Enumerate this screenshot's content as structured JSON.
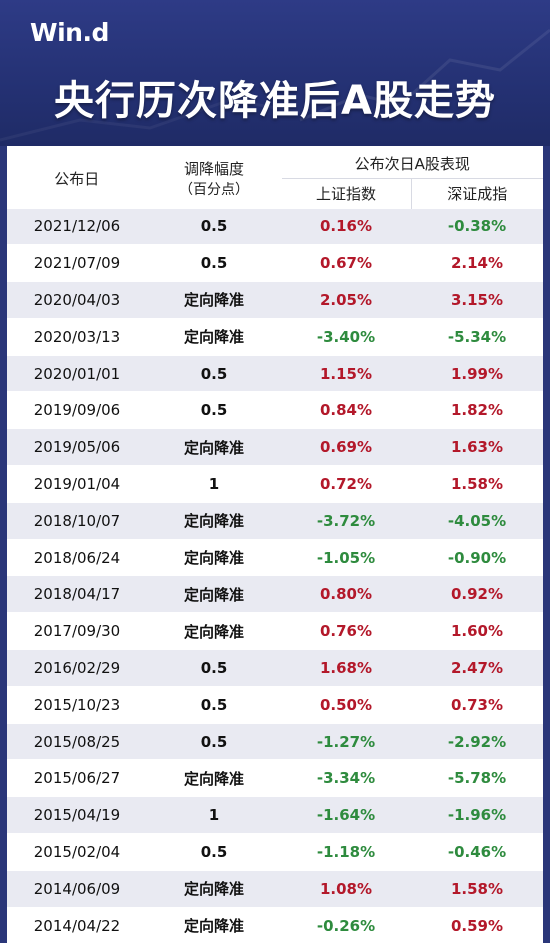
{
  "header": {
    "logo": "Win.d",
    "title": "央行历次降准后A股走势"
  },
  "table": {
    "col_date": "公布日",
    "col_cut_line1": "调降幅度",
    "col_cut_line2": "（百分点）",
    "col_group": "公布次日A股表现",
    "col_sh": "上证指数",
    "col_sz": "深证成指",
    "rows": [
      {
        "date": "2021/12/06",
        "cut": "0.5",
        "sh": "0.16%",
        "sz": "-0.38%"
      },
      {
        "date": "2021/07/09",
        "cut": "0.5",
        "sh": "0.67%",
        "sz": "2.14%"
      },
      {
        "date": "2020/04/03",
        "cut": "定向降准",
        "sh": "2.05%",
        "sz": "3.15%"
      },
      {
        "date": "2020/03/13",
        "cut": "定向降准",
        "sh": "-3.40%",
        "sz": "-5.34%"
      },
      {
        "date": "2020/01/01",
        "cut": "0.5",
        "sh": "1.15%",
        "sz": "1.99%"
      },
      {
        "date": "2019/09/06",
        "cut": "0.5",
        "sh": "0.84%",
        "sz": "1.82%"
      },
      {
        "date": "2019/05/06",
        "cut": "定向降准",
        "sh": "0.69%",
        "sz": "1.63%"
      },
      {
        "date": "2019/01/04",
        "cut": "1",
        "sh": "0.72%",
        "sz": "1.58%"
      },
      {
        "date": "2018/10/07",
        "cut": "定向降准",
        "sh": "-3.72%",
        "sz": "-4.05%"
      },
      {
        "date": "2018/06/24",
        "cut": "定向降准",
        "sh": "-1.05%",
        "sz": "-0.90%"
      },
      {
        "date": "2018/04/17",
        "cut": "定向降准",
        "sh": "0.80%",
        "sz": "0.92%"
      },
      {
        "date": "2017/09/30",
        "cut": "定向降准",
        "sh": "0.76%",
        "sz": "1.60%"
      },
      {
        "date": "2016/02/29",
        "cut": "0.5",
        "sh": "1.68%",
        "sz": "2.47%"
      },
      {
        "date": "2015/10/23",
        "cut": "0.5",
        "sh": "0.50%",
        "sz": "0.73%"
      },
      {
        "date": "2015/08/25",
        "cut": "0.5",
        "sh": "-1.27%",
        "sz": "-2.92%"
      },
      {
        "date": "2015/06/27",
        "cut": "定向降准",
        "sh": "-3.34%",
        "sz": "-5.78%"
      },
      {
        "date": "2015/04/19",
        "cut": "1",
        "sh": "-1.64%",
        "sz": "-1.96%"
      },
      {
        "date": "2015/02/04",
        "cut": "0.5",
        "sh": "-1.18%",
        "sz": "-0.46%"
      },
      {
        "date": "2014/06/09",
        "cut": "定向降准",
        "sh": "1.08%",
        "sz": "1.58%"
      },
      {
        "date": "2014/04/22",
        "cut": "定向降准",
        "sh": "-0.26%",
        "sz": "0.59%"
      }
    ]
  },
  "colors": {
    "banner": "#243173",
    "positive": "#b3182a",
    "negative": "#2e8b3e",
    "stripe": "#e9eaf2"
  }
}
